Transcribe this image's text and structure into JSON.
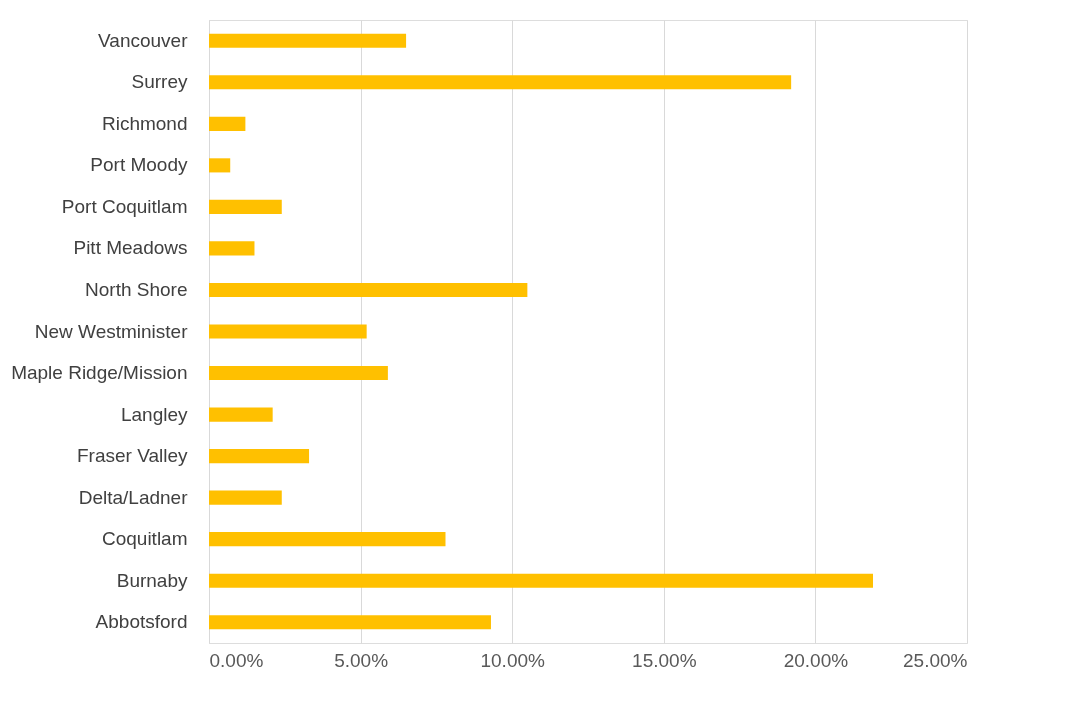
{
  "chart_data": {
    "type": "bar",
    "orientation": "horizontal",
    "categories": [
      "Vancouver",
      "Surrey",
      "Richmond",
      "Port Moody",
      "Port Coquitlam",
      "Pitt Meadows",
      "North Shore",
      "New Westminister",
      "Maple Ridge/Mission",
      "Langley",
      "Fraser Valley",
      "Delta/Ladner",
      "Coquitlam",
      "Burnaby",
      "Abbotsford"
    ],
    "values": [
      6.5,
      19.2,
      1.2,
      0.7,
      2.4,
      1.5,
      10.5,
      5.2,
      5.9,
      2.1,
      3.3,
      2.4,
      7.8,
      21.9,
      9.3
    ],
    "color": "#ffc000",
    "xlim": [
      0,
      25
    ],
    "xticks": [
      {
        "value": 0,
        "label": "0.00%"
      },
      {
        "value": 5,
        "label": "5.00%"
      },
      {
        "value": 10,
        "label": "10.00%"
      },
      {
        "value": 15,
        "label": "15.00%"
      },
      {
        "value": 20,
        "label": "20.00%"
      },
      {
        "value": 25,
        "label": "25.00%"
      }
    ],
    "grid": "x",
    "legend": false
  }
}
